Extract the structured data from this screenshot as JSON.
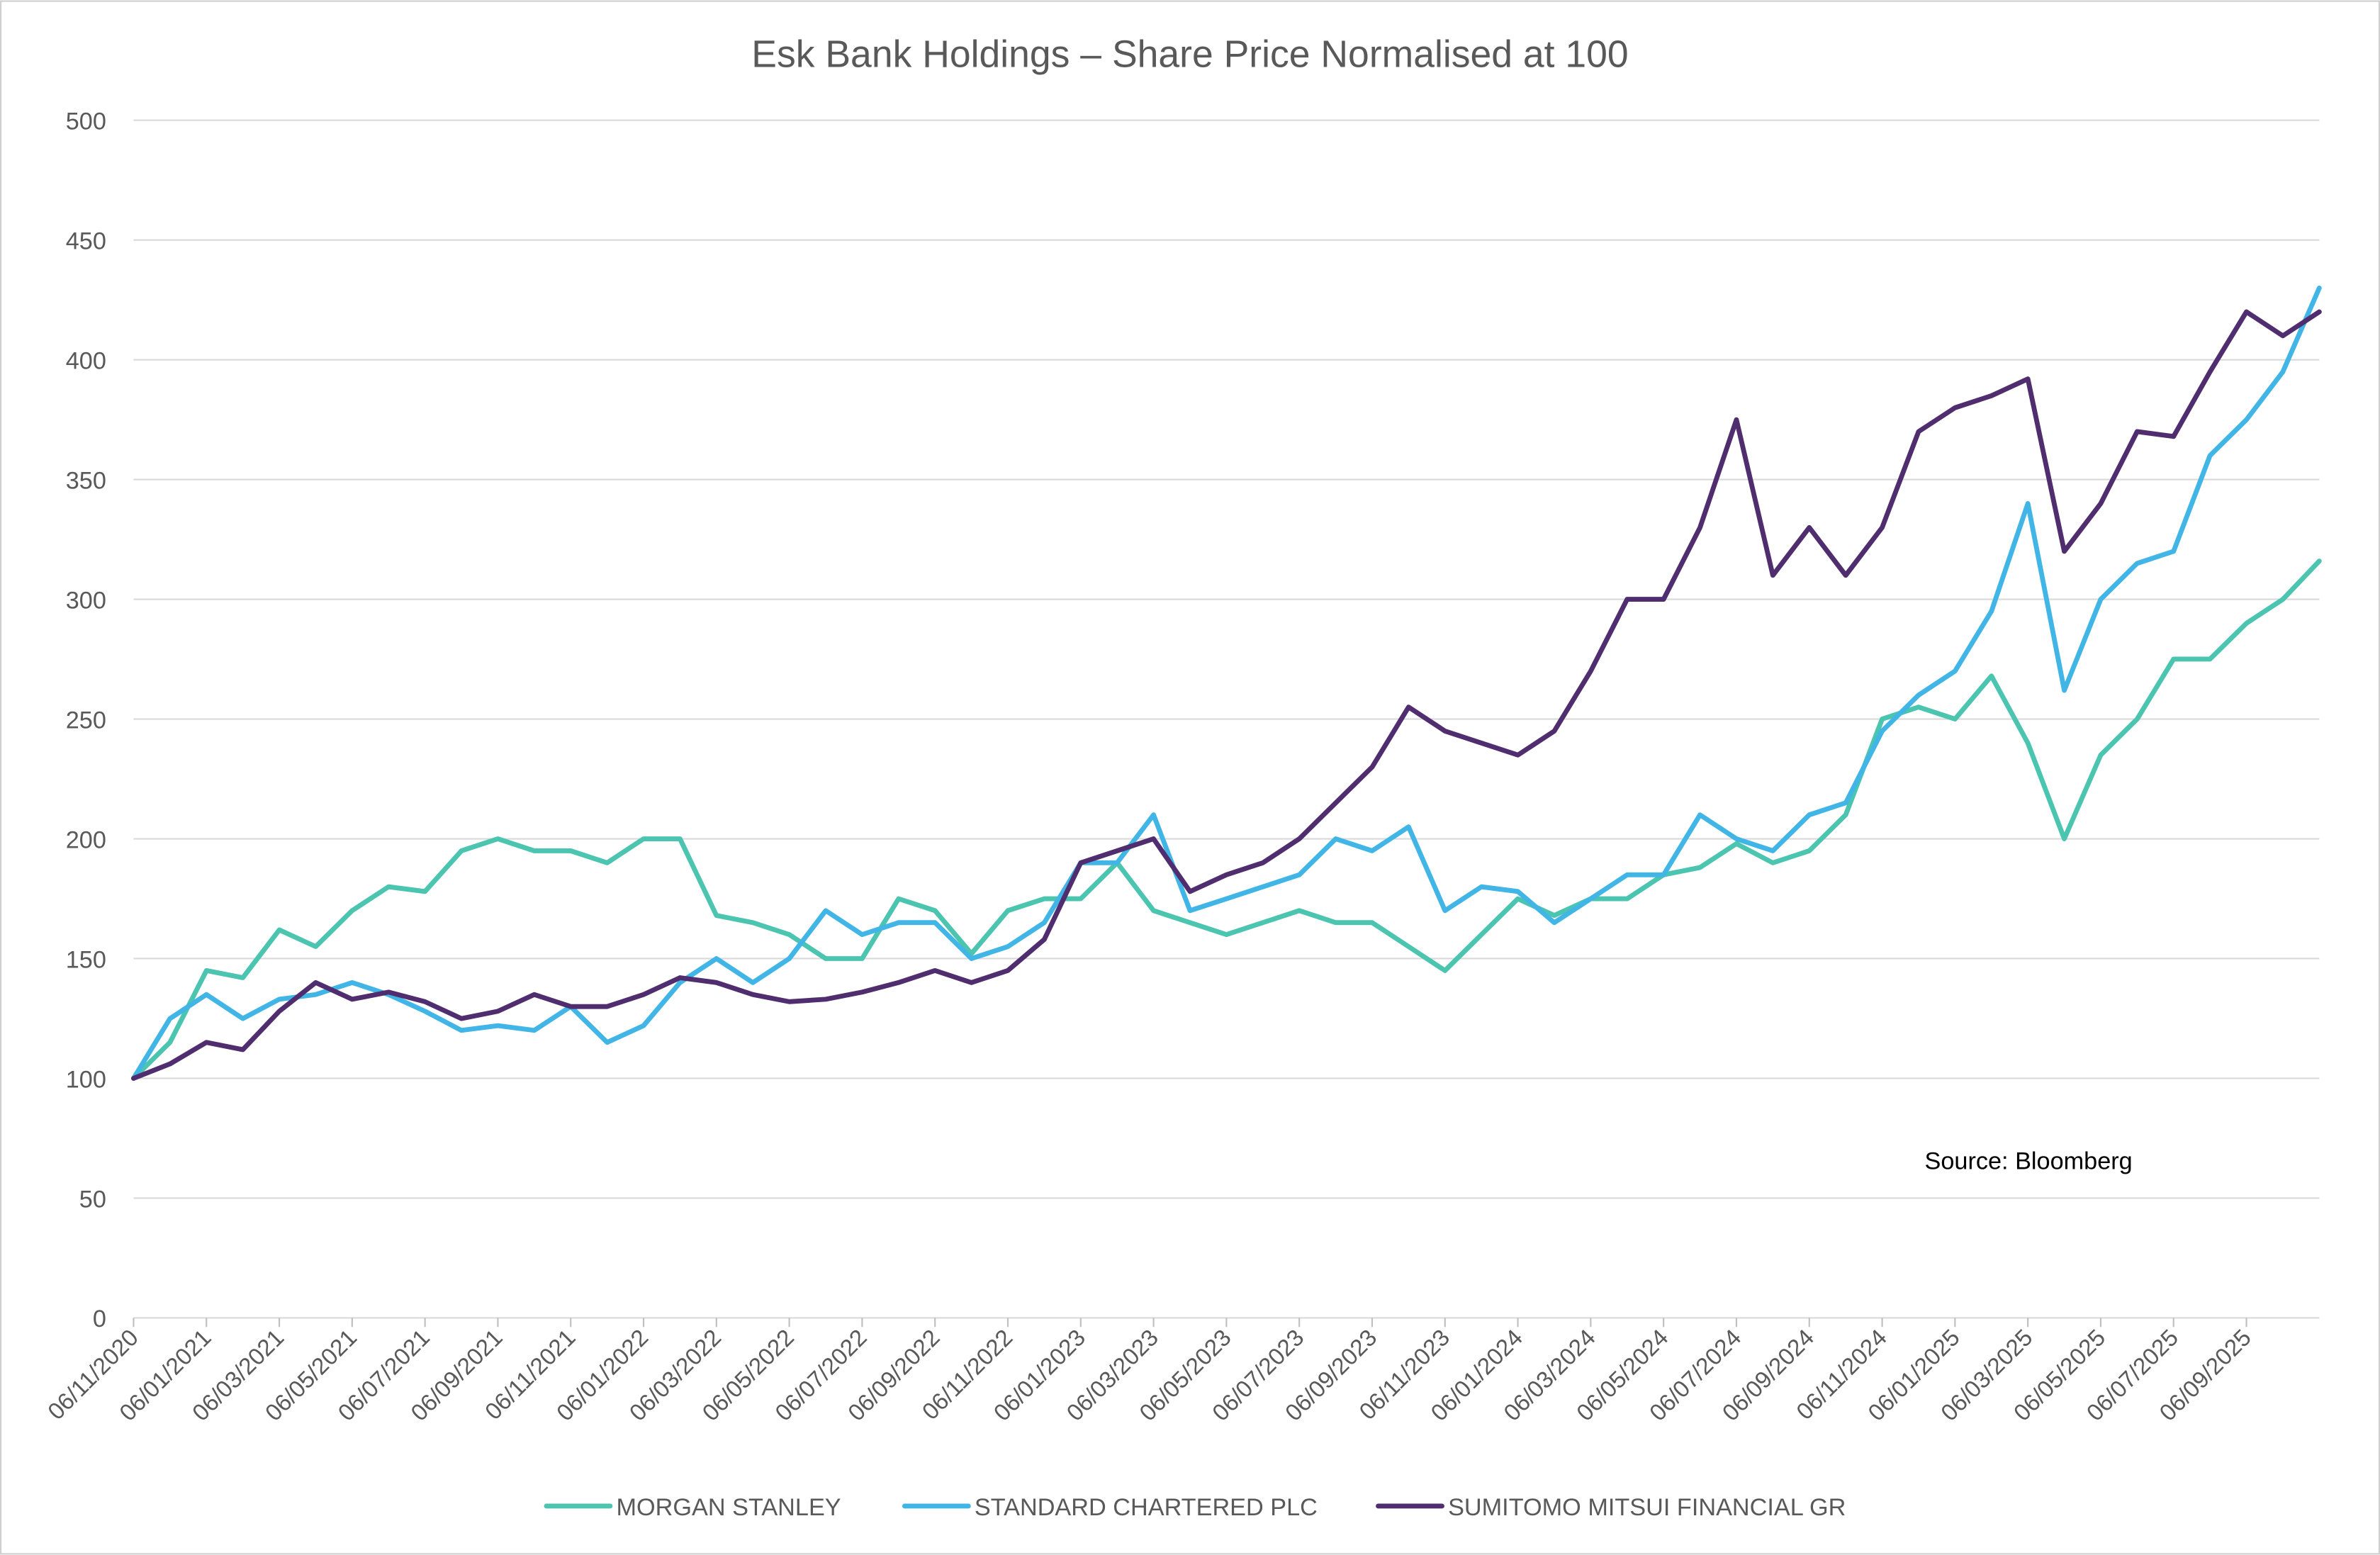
{
  "chart_data": {
    "type": "line",
    "title": "Esk Bank Holdings – Share Price Normalised at 100",
    "xlabel": "",
    "ylabel": "",
    "ylim": [
      0,
      500
    ],
    "yticks": [
      0,
      50,
      100,
      150,
      200,
      250,
      300,
      350,
      400,
      450,
      500
    ],
    "grid": "horizontal",
    "legend_position": "bottom",
    "annotation": "Source: Bloomberg",
    "xtick_labels": [
      "06/11/2020",
      "06/01/2021",
      "06/03/2021",
      "06/05/2021",
      "06/07/2021",
      "06/09/2021",
      "06/11/2021",
      "06/01/2022",
      "06/03/2022",
      "06/05/2022",
      "06/07/2022",
      "06/09/2022",
      "06/11/2022",
      "06/01/2023",
      "06/03/2023",
      "06/05/2023",
      "06/07/2023",
      "06/09/2023",
      "06/11/2023",
      "06/01/2024",
      "06/03/2024",
      "06/05/2024",
      "06/07/2024",
      "06/09/2024",
      "06/11/2024",
      "06/01/2025",
      "06/03/2025",
      "06/05/2025",
      "06/07/2025",
      "06/09/2025"
    ],
    "x": [
      "2020-11",
      "2020-12",
      "2021-01",
      "2021-02",
      "2021-03",
      "2021-04",
      "2021-05",
      "2021-06",
      "2021-07",
      "2021-08",
      "2021-09",
      "2021-10",
      "2021-11",
      "2021-12",
      "2022-01",
      "2022-02",
      "2022-03",
      "2022-04",
      "2022-05",
      "2022-06",
      "2022-07",
      "2022-08",
      "2022-09",
      "2022-10",
      "2022-11",
      "2022-12",
      "2023-01",
      "2023-02",
      "2023-03",
      "2023-04",
      "2023-05",
      "2023-06",
      "2023-07",
      "2023-08",
      "2023-09",
      "2023-10",
      "2023-11",
      "2023-12",
      "2024-01",
      "2024-02",
      "2024-03",
      "2024-04",
      "2024-05",
      "2024-06",
      "2024-07",
      "2024-08",
      "2024-09",
      "2024-10",
      "2024-11",
      "2024-12",
      "2025-01",
      "2025-02",
      "2025-03",
      "2025-04",
      "2025-05",
      "2025-06",
      "2025-07",
      "2025-08",
      "2025-09",
      "2025-10",
      "2025-11"
    ],
    "series": [
      {
        "name": "MORGAN STANLEY",
        "color": "#4BC4B0",
        "values": [
          100,
          115,
          145,
          142,
          162,
          155,
          170,
          180,
          178,
          195,
          200,
          195,
          195,
          190,
          200,
          200,
          168,
          165,
          160,
          150,
          150,
          175,
          170,
          152,
          170,
          175,
          175,
          190,
          170,
          165,
          160,
          165,
          170,
          165,
          165,
          155,
          145,
          160,
          175,
          168,
          175,
          175,
          185,
          188,
          198,
          190,
          195,
          210,
          250,
          255,
          250,
          268,
          240,
          200,
          235,
          250,
          275,
          275,
          290,
          300,
          316
        ]
      },
      {
        "name": "STANDARD CHARTERED PLC",
        "color": "#41B6E6",
        "values": [
          100,
          125,
          135,
          125,
          133,
          135,
          140,
          135,
          128,
          120,
          122,
          120,
          130,
          115,
          122,
          140,
          150,
          140,
          150,
          170,
          160,
          165,
          165,
          150,
          155,
          165,
          190,
          190,
          210,
          170,
          175,
          180,
          185,
          200,
          195,
          205,
          170,
          180,
          178,
          165,
          175,
          185,
          185,
          210,
          200,
          195,
          210,
          215,
          245,
          260,
          270,
          295,
          340,
          262,
          300,
          315,
          320,
          360,
          375,
          395,
          430
        ]
      },
      {
        "name": "SUMITOMO MITSUI FINANCIAL GR",
        "color": "#4F2D6E",
        "values": [
          100,
          106,
          115,
          112,
          128,
          140,
          133,
          136,
          132,
          125,
          128,
          135,
          130,
          130,
          135,
          142,
          140,
          135,
          132,
          133,
          136,
          140,
          145,
          140,
          145,
          158,
          190,
          195,
          200,
          178,
          185,
          190,
          200,
          215,
          230,
          255,
          245,
          240,
          235,
          245,
          270,
          300,
          300,
          330,
          375,
          310,
          330,
          310,
          330,
          370,
          380,
          385,
          392,
          320,
          340,
          370,
          368,
          395,
          420,
          410,
          420
        ]
      }
    ]
  }
}
